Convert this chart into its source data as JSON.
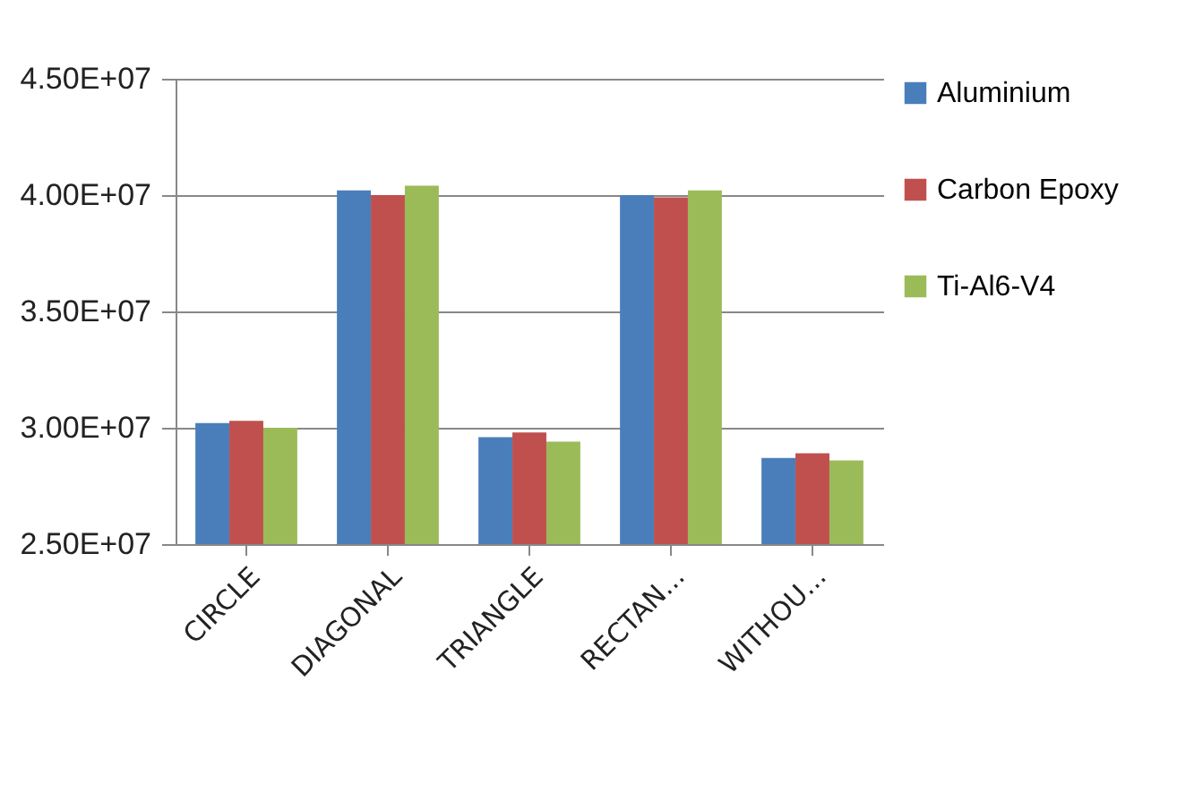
{
  "chart_data": {
    "type": "bar",
    "categories": [
      "CIRCLE",
      "DIAGONAL",
      "TRIANGLE",
      "RECTAN...",
      "WITHOU..."
    ],
    "series": [
      {
        "name": "Aluminium",
        "color": "#4a7ebb",
        "values": [
          30200000.0,
          40200000.0,
          29600000.0,
          40000000.0,
          28700000.0
        ]
      },
      {
        "name": "Carbon Epoxy",
        "color": "#c0504d",
        "values": [
          30300000.0,
          40000000.0,
          29800000.0,
          39900000.0,
          28900000.0
        ]
      },
      {
        "name": "Ti-Al6-V4",
        "color": "#9bbb59",
        "values": [
          30000000.0,
          40400000.0,
          29400000.0,
          40200000.0,
          28600000.0
        ]
      }
    ],
    "ylim": [
      25000000.0,
      45000000.0
    ],
    "yticks": [
      {
        "value": 25000000.0,
        "label": "2.50E+07"
      },
      {
        "value": 30000000.0,
        "label": "3.00E+07"
      },
      {
        "value": 35000000.0,
        "label": "3.50E+07"
      },
      {
        "value": 40000000.0,
        "label": "4.00E+07"
      },
      {
        "value": 45000000.0,
        "label": "4.50E+07"
      }
    ],
    "grid": "y",
    "legend": "right"
  }
}
